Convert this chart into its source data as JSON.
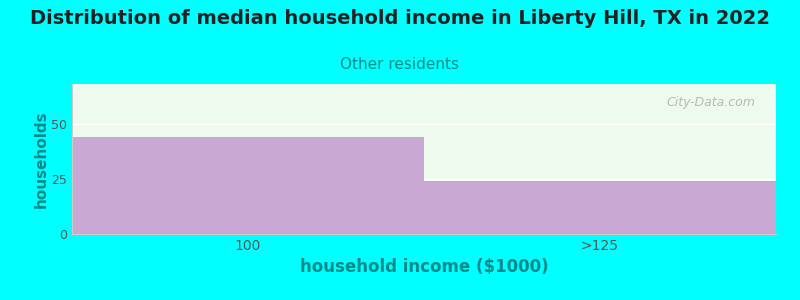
{
  "title": "Distribution of median household income in Liberty Hill, TX in 2022",
  "subtitle": "Other residents",
  "xlabel": "household income ($1000)",
  "ylabel": "households",
  "categories": [
    "100",
    ">125"
  ],
  "values": [
    44,
    24
  ],
  "bar_color": "#C9A8D4",
  "background_color": "#00FFFF",
  "plot_bg_color": "#EDFAED",
  "ylim": [
    0,
    68
  ],
  "yticks": [
    0,
    25,
    50
  ],
  "title_fontsize": 14,
  "subtitle_fontsize": 11,
  "subtitle_color": "#008B8B",
  "title_color": "#222222",
  "axis_label_color": "#008B8B",
  "tick_color": "#555555",
  "xlabel_fontsize": 12,
  "ylabel_fontsize": 11,
  "watermark": "City-Data.com",
  "watermark_color": "#aaaaaa"
}
